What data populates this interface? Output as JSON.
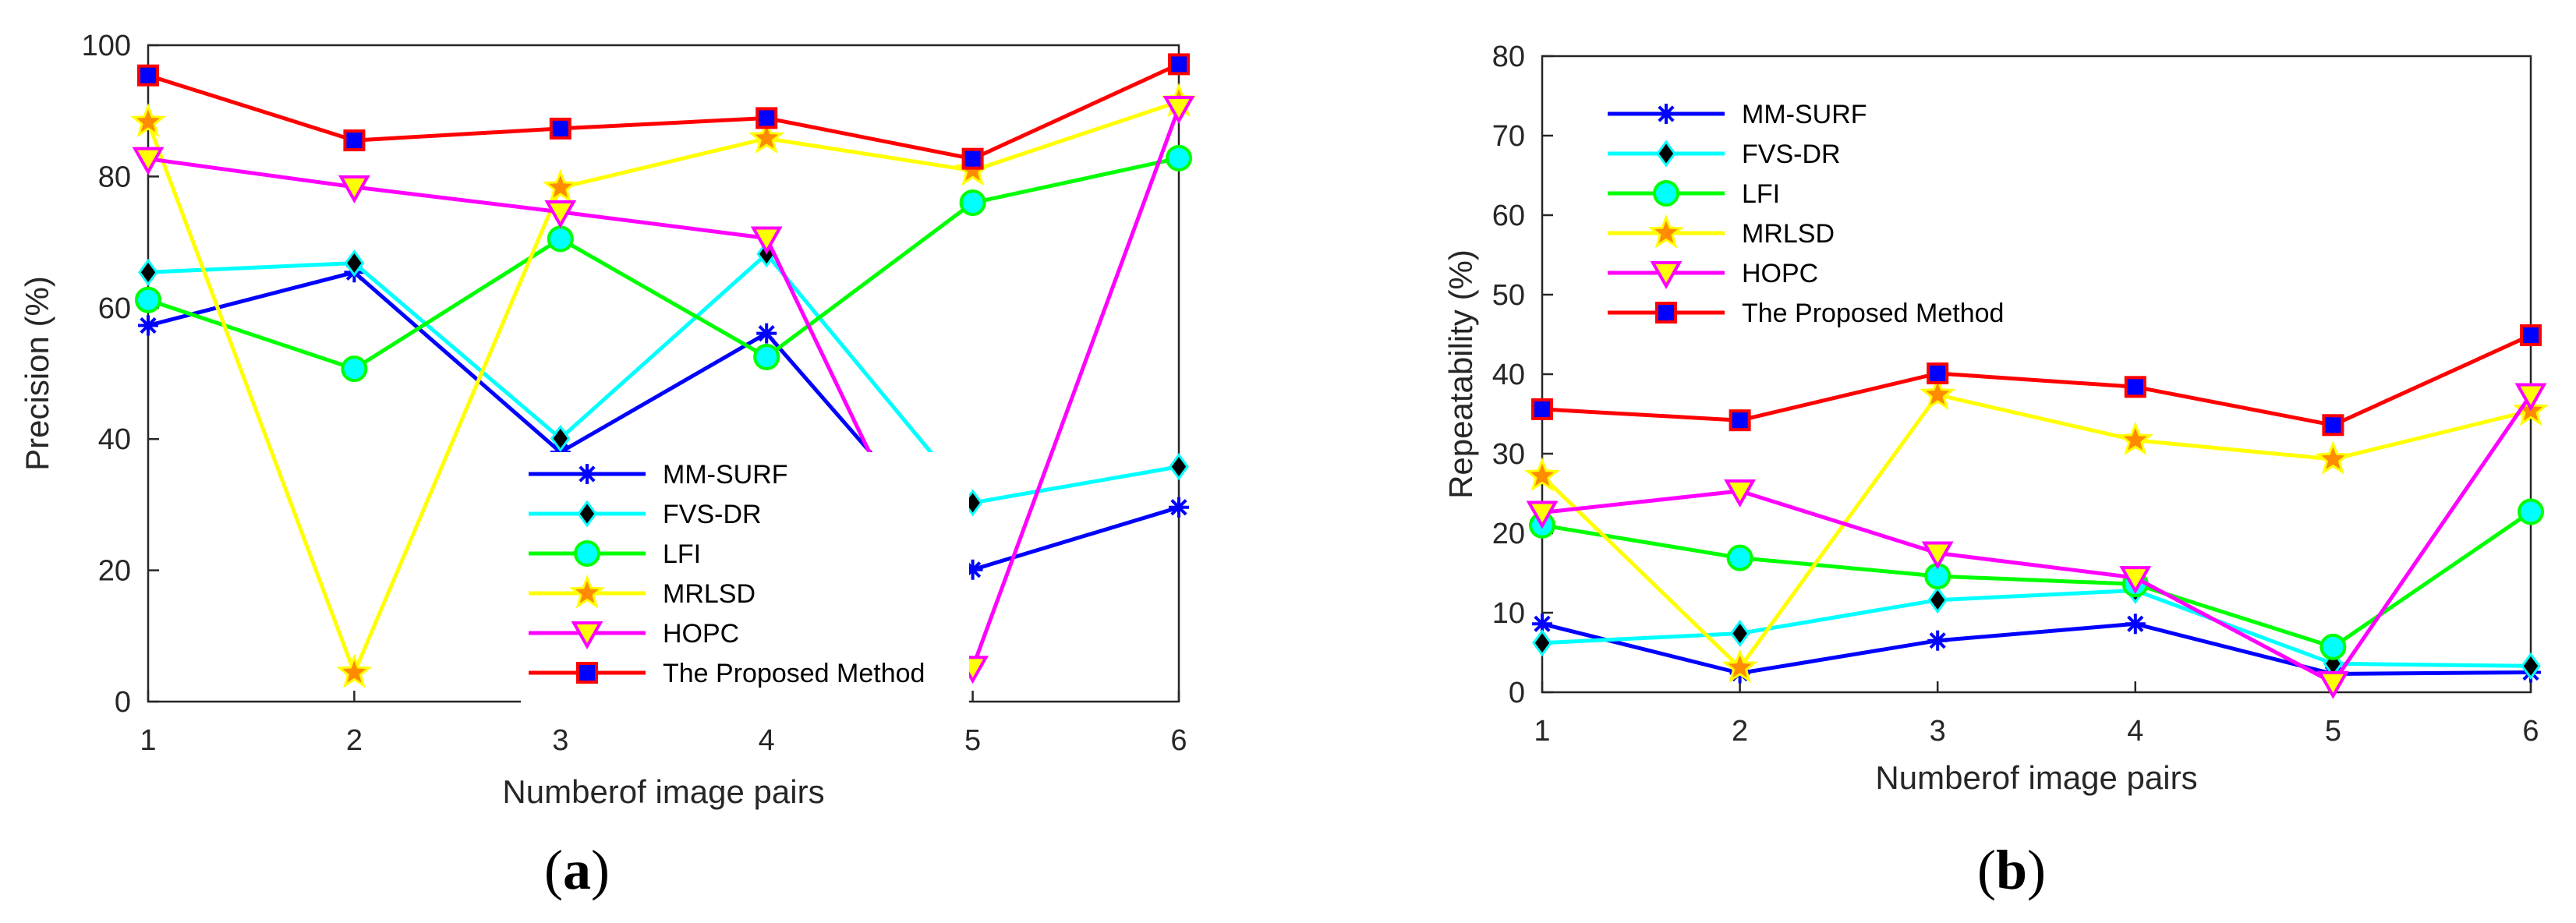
{
  "chart_data": [
    {
      "id": "a",
      "type": "line",
      "panel_label": "a",
      "xlabel": "Numberof image pairs",
      "ylabel": "Precision (%)",
      "x": [
        1,
        2,
        3,
        4,
        5,
        6
      ],
      "xlim": [
        1,
        6
      ],
      "ylim": [
        0,
        100
      ],
      "xticks": [
        "1",
        "2",
        "3",
        "4",
        "5",
        "6"
      ],
      "yticks": [
        "0",
        "20",
        "40",
        "60",
        "80",
        "100"
      ],
      "ytick_values": [
        0,
        20,
        40,
        60,
        80,
        100
      ],
      "legend_position": "bottom-right",
      "series": [
        {
          "name": "MM-SURF",
          "values": [
            57.3,
            65.4,
            38.0,
            56.1,
            20.1,
            29.6
          ],
          "color": "#0000ff",
          "marker": "asterisk"
        },
        {
          "name": "FVS-DR",
          "values": [
            65.4,
            66.8,
            40.1,
            68.2,
            30.3,
            35.8
          ],
          "color": "#00ffff",
          "marker": "diamond"
        },
        {
          "name": "LFI",
          "values": [
            61.2,
            50.7,
            70.5,
            52.5,
            76.0,
            82.8
          ],
          "color": "#00ff00",
          "marker": "circle"
        },
        {
          "name": "MRLSD",
          "values": [
            88.3,
            4.4,
            78.3,
            85.8,
            80.9,
            91.4
          ],
          "color": "#ffff00",
          "marker": "star"
        },
        {
          "name": "HOPC",
          "values": [
            82.7,
            78.4,
            74.6,
            70.6,
            5.2,
            90.5
          ],
          "color": "#ff00ff",
          "marker": "triangle-down"
        },
        {
          "name": "The Proposed Method",
          "values": [
            95.4,
            85.5,
            87.3,
            88.9,
            82.7,
            97.1
          ],
          "color": "#ff0000",
          "marker": "square"
        }
      ]
    },
    {
      "id": "b",
      "type": "line",
      "panel_label": "b",
      "xlabel": "Numberof image pairs",
      "ylabel": "Repeatability (%)",
      "x": [
        1,
        2,
        3,
        4,
        5,
        6
      ],
      "xlim": [
        1,
        6
      ],
      "ylim": [
        0,
        80
      ],
      "xticks": [
        "1",
        "2",
        "3",
        "4",
        "5",
        "6"
      ],
      "yticks": [
        "0",
        "10",
        "20",
        "30",
        "40",
        "50",
        "60",
        "70",
        "80"
      ],
      "ytick_values": [
        0,
        10,
        20,
        30,
        40,
        50,
        60,
        70,
        80
      ],
      "legend_position": "top-left",
      "series": [
        {
          "name": "MM-SURF",
          "values": [
            8.6,
            2.4,
            6.5,
            8.6,
            2.3,
            2.5
          ],
          "color": "#0000ff",
          "marker": "asterisk"
        },
        {
          "name": "FVS-DR",
          "values": [
            6.2,
            7.4,
            11.6,
            12.8,
            3.6,
            3.3
          ],
          "color": "#00ffff",
          "marker": "diamond"
        },
        {
          "name": "LFI",
          "values": [
            21.0,
            16.9,
            14.6,
            13.6,
            5.7,
            22.7
          ],
          "color": "#00ff00",
          "marker": "circle"
        },
        {
          "name": "MRLSD",
          "values": [
            27.2,
            3.1,
            37.4,
            31.7,
            29.3,
            35.4
          ],
          "color": "#ffff00",
          "marker": "star"
        },
        {
          "name": "HOPC",
          "values": [
            22.6,
            25.3,
            17.5,
            14.4,
            1.2,
            37.4
          ],
          "color": "#ff00ff",
          "marker": "triangle-down"
        },
        {
          "name": "The Proposed Method",
          "values": [
            35.6,
            34.2,
            40.1,
            38.4,
            33.6,
            44.9
          ],
          "color": "#ff0000",
          "marker": "square"
        }
      ]
    }
  ]
}
